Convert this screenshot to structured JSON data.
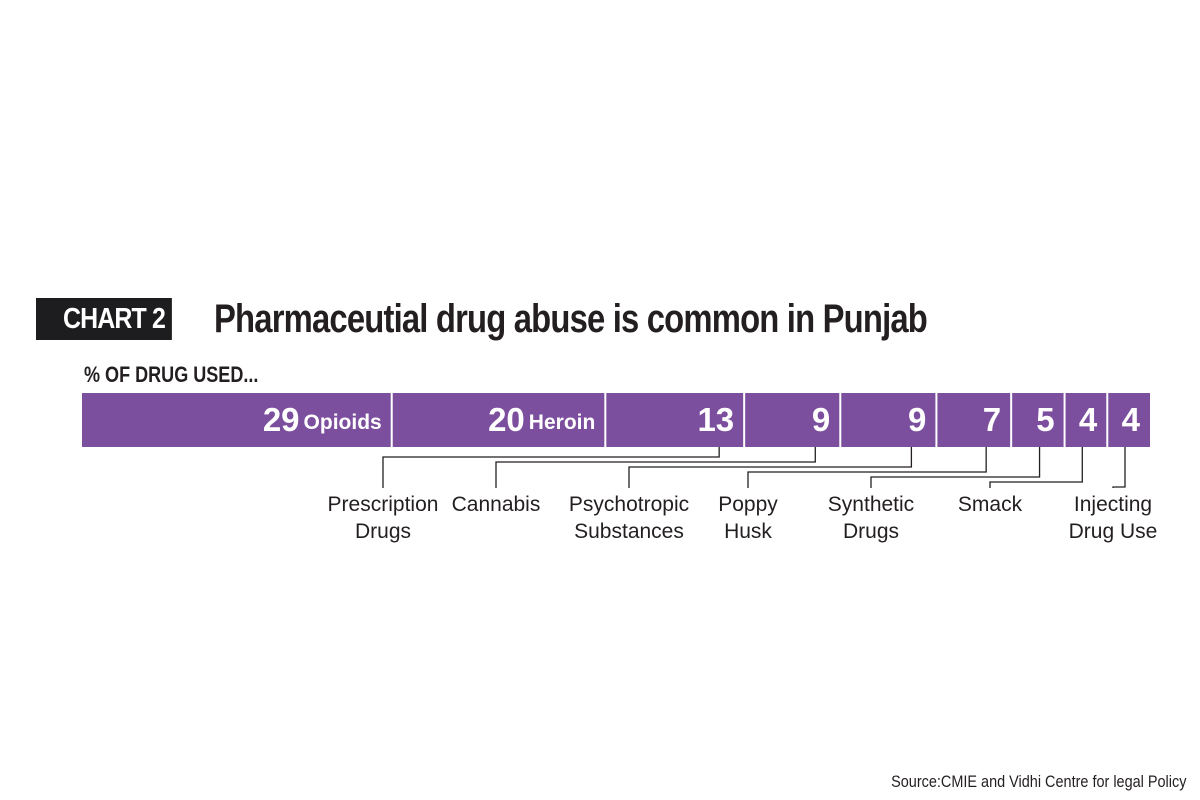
{
  "header": {
    "badge": "CHART 2",
    "title": "Pharmaceutial drug abuse is common in Punjab",
    "subtitle": "% OF DRUG USED..."
  },
  "source": "Source:CMIE and Vidhi Centre for legal Policy",
  "colors": {
    "bar": "#7b4f9e",
    "text": "#231f20",
    "badge_bg": "#1d1d1f"
  },
  "chart_data": {
    "type": "bar",
    "orientation": "horizontal-stacked",
    "title": "Pharmaceutial drug abuse is common in Punjab",
    "ylabel": "% OF DRUG USED...",
    "categories": [
      "Opioids",
      "Heroin",
      "Prescription Drugs",
      "Cannabis",
      "Psychotropic Substances",
      "Poppy Husk",
      "Synthetic Drugs",
      "Smack",
      "Injecting Drug Use"
    ],
    "values": [
      29,
      20,
      13,
      9,
      9,
      7,
      5,
      4,
      4
    ],
    "inline_labels": [
      "Opioids",
      "Heroin",
      "",
      "",
      "",
      "",
      "",
      "",
      ""
    ],
    "callout_labels": [
      {
        "index": 2,
        "lines": [
          "Prescription",
          "Drugs"
        ]
      },
      {
        "index": 3,
        "lines": [
          "Cannabis"
        ]
      },
      {
        "index": 4,
        "lines": [
          "Psychotropic",
          "Substances"
        ]
      },
      {
        "index": 5,
        "lines": [
          "Poppy",
          "Husk"
        ]
      },
      {
        "index": 6,
        "lines": [
          "Synthetic",
          "Drugs"
        ]
      },
      {
        "index": 7,
        "lines": [
          "Smack"
        ]
      },
      {
        "index": 8,
        "lines": [
          "Injecting",
          "Drug Use"
        ]
      }
    ]
  }
}
